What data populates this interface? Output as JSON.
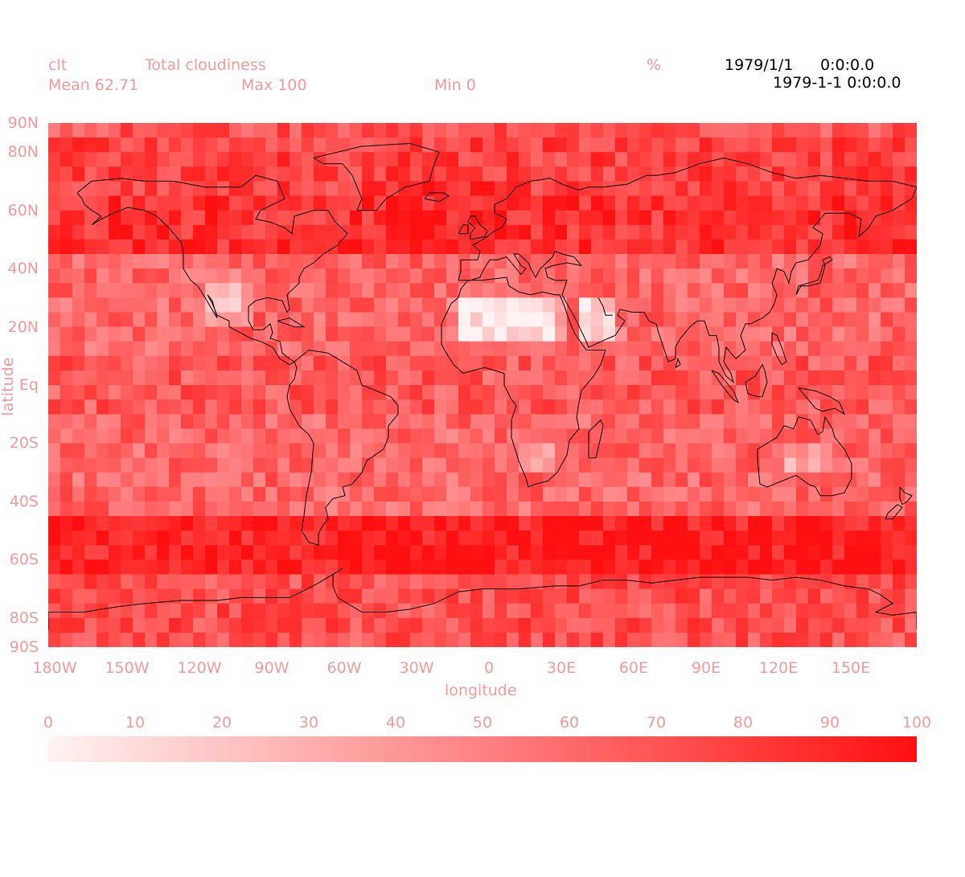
{
  "header": {
    "var_name": "clt",
    "long_name": "Total cloudiness",
    "units": "%",
    "date1": "1979/1/1",
    "time1": "0:0:0.0",
    "datetime2": "1979-1-1 0:0:0.0",
    "mean_label": "Mean 62.71",
    "max_label": "Max 100",
    "min_label": "Min 0"
  },
  "axes": {
    "ylabel": "latitude",
    "xlabel": "longitude",
    "lat_ticks": [
      {
        "label": "90N",
        "value": 90
      },
      {
        "label": "80N",
        "value": 80
      },
      {
        "label": "60N",
        "value": 60
      },
      {
        "label": "40N",
        "value": 40
      },
      {
        "label": "20N",
        "value": 20
      },
      {
        "label": "Eq",
        "value": 0
      },
      {
        "label": "20S",
        "value": -20
      },
      {
        "label": "40S",
        "value": -40
      },
      {
        "label": "60S",
        "value": -60
      },
      {
        "label": "80S",
        "value": -80
      },
      {
        "label": "90S",
        "value": -90
      }
    ],
    "lon_ticks": [
      {
        "label": "180W",
        "value": -180
      },
      {
        "label": "150W",
        "value": -150
      },
      {
        "label": "120W",
        "value": -120
      },
      {
        "label": "90W",
        "value": -90
      },
      {
        "label": "60W",
        "value": -60
      },
      {
        "label": "30W",
        "value": -30
      },
      {
        "label": "0",
        "value": 0
      },
      {
        "label": "30E",
        "value": 30
      },
      {
        "label": "60E",
        "value": 60
      },
      {
        "label": "90E",
        "value": 90
      },
      {
        "label": "120E",
        "value": 120
      },
      {
        "label": "150E",
        "value": 150
      }
    ],
    "lon_range": [
      -180,
      180
    ],
    "lat_range": [
      -90,
      90
    ]
  },
  "colorbar": {
    "ticks": [
      "0",
      "10",
      "20",
      "30",
      "40",
      "50",
      "60",
      "70",
      "80",
      "90",
      "100"
    ],
    "color_min": "#fff2f2",
    "color_max": "#ff1010"
  },
  "chart_data": {
    "type": "heatmap",
    "variable": "clt",
    "units": "%",
    "value_range": [
      0,
      100
    ],
    "mean": 62.71,
    "grid_notes": "global gridded field on lon -180..180, lat -90..90",
    "cloud_features": [
      {
        "region": "Sahara",
        "lon": [
          -15,
          35
        ],
        "lat": [
          12,
          32
        ],
        "level": 5
      },
      {
        "region": "Arabia",
        "lon": [
          38,
          58
        ],
        "lat": [
          15,
          30
        ],
        "level": 15
      },
      {
        "region": "Southwest US / Mexico",
        "lon": [
          -118,
          -95
        ],
        "lat": [
          20,
          38
        ],
        "level": 25
      },
      {
        "region": "Australia interior",
        "lon": [
          120,
          145
        ],
        "lat": [
          -32,
          -18
        ],
        "level": 35
      },
      {
        "region": "Southern Africa",
        "lon": [
          15,
          30
        ],
        "lat": [
          -32,
          -18
        ],
        "level": 40
      },
      {
        "region": "Southern Ocean storm track",
        "lon": [
          -180,
          180
        ],
        "lat": [
          -65,
          -45
        ],
        "level": 95
      },
      {
        "region": "North Atlantic",
        "lon": [
          -50,
          10
        ],
        "lat": [
          45,
          70
        ],
        "level": 92
      }
    ]
  }
}
